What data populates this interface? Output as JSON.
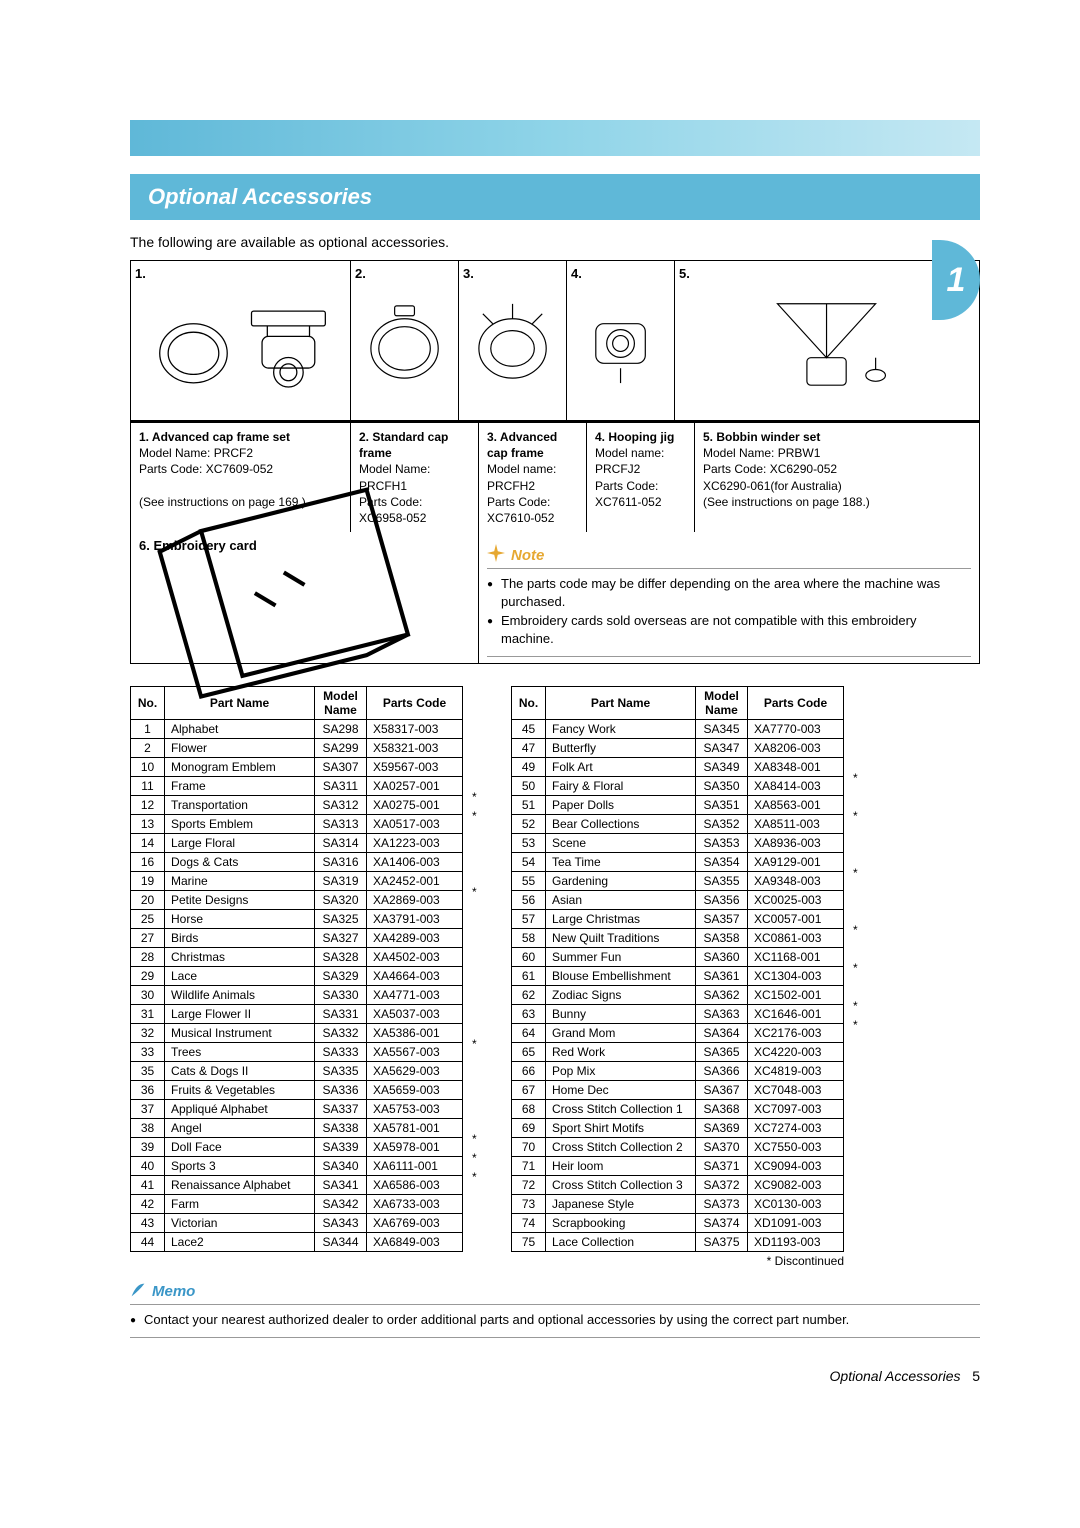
{
  "header": {
    "title": "Optional Accessories"
  },
  "chapter_tab": "1",
  "intro": "The following are available as optional accessories.",
  "accessories_nums": [
    "1.",
    "2.",
    "3.",
    "4.",
    "5."
  ],
  "accessory_details": [
    {
      "num": "1.",
      "title": "Advanced cap frame set",
      "lines": [
        "Model Name: PRCF2",
        "Parts Code: XC7609-052",
        "",
        "(See instructions on page 169.)"
      ]
    },
    {
      "num": "2.",
      "title": "Standard cap frame",
      "lines": [
        "Model Name: PRCFH1",
        "Parts Code: XC6958-052"
      ]
    },
    {
      "num": "3.",
      "title": "Advanced cap frame",
      "lines": [
        "Model name: PRCFH2",
        "Parts Code: XC7610-052"
      ]
    },
    {
      "num": "4.",
      "title": "Hooping jig",
      "lines": [
        "Model name: PRCFJ2",
        "Parts Code: XC7611-052"
      ]
    },
    {
      "num": "5.",
      "title": "Bobbin winder set",
      "lines": [
        "Model Name: PRBW1",
        "Parts Code: XC6290-052",
        "XC6290-061(for Australia)",
        "(See instructions on page 188.)"
      ]
    }
  ],
  "embroidery_card": {
    "num": "6.",
    "title": "Embroidery card"
  },
  "note": {
    "title": "Note",
    "items": [
      "The parts code may be differ depending on the area where the machine was purchased.",
      "Embroidery cards sold overseas are not compatible with this embroidery machine."
    ]
  },
  "table_headers": {
    "no": "No.",
    "part_name": "Part Name",
    "model_name": "Model Name",
    "parts_code": "Parts Code"
  },
  "parts_left": [
    {
      "no": "1",
      "name": "Alphabet",
      "model": "SA298",
      "code": "X58317-003"
    },
    {
      "no": "2",
      "name": "Flower",
      "model": "SA299",
      "code": "X58321-003"
    },
    {
      "no": "10",
      "name": "Monogram Emblem",
      "model": "SA307",
      "code": "X59567-003"
    },
    {
      "no": "11",
      "name": "Frame",
      "model": "SA311",
      "code": "XA0257-001",
      "star": true
    },
    {
      "no": "12",
      "name": "Transportation",
      "model": "SA312",
      "code": "XA0275-001",
      "star": true
    },
    {
      "no": "13",
      "name": "Sports Emblem",
      "model": "SA313",
      "code": "XA0517-003"
    },
    {
      "no": "14",
      "name": "Large Floral",
      "model": "SA314",
      "code": "XA1223-003"
    },
    {
      "no": "16",
      "name": "Dogs & Cats",
      "model": "SA316",
      "code": "XA1406-003"
    },
    {
      "no": "19",
      "name": "Marine",
      "model": "SA319",
      "code": "XA2452-001",
      "star": true
    },
    {
      "no": "20",
      "name": "Petite Designs",
      "model": "SA320",
      "code": "XA2869-003"
    },
    {
      "no": "25",
      "name": "Horse",
      "model": "SA325",
      "code": "XA3791-003"
    },
    {
      "no": "27",
      "name": "Birds",
      "model": "SA327",
      "code": "XA4289-003"
    },
    {
      "no": "28",
      "name": "Christmas",
      "model": "SA328",
      "code": "XA4502-003"
    },
    {
      "no": "29",
      "name": "Lace",
      "model": "SA329",
      "code": "XA4664-003"
    },
    {
      "no": "30",
      "name": "Wildlife Animals",
      "model": "SA330",
      "code": "XA4771-003"
    },
    {
      "no": "31",
      "name": "Large Flower II",
      "model": "SA331",
      "code": "XA5037-003"
    },
    {
      "no": "32",
      "name": "Musical Instrument",
      "model": "SA332",
      "code": "XA5386-001",
      "star": true
    },
    {
      "no": "33",
      "name": "Trees",
      "model": "SA333",
      "code": "XA5567-003"
    },
    {
      "no": "35",
      "name": "Cats & Dogs II",
      "model": "SA335",
      "code": "XA5629-003"
    },
    {
      "no": "36",
      "name": "Fruits & Vegetables",
      "model": "SA336",
      "code": "XA5659-003"
    },
    {
      "no": "37",
      "name": "Appliqué Alphabet",
      "model": "SA337",
      "code": "XA5753-003"
    },
    {
      "no": "38",
      "name": "Angel",
      "model": "SA338",
      "code": "XA5781-001",
      "star": true
    },
    {
      "no": "39",
      "name": "Doll Face",
      "model": "SA339",
      "code": "XA5978-001",
      "star": true
    },
    {
      "no": "40",
      "name": "Sports 3",
      "model": "SA340",
      "code": "XA6111-001",
      "star": true
    },
    {
      "no": "41",
      "name": "Renaissance Alphabet",
      "model": "SA341",
      "code": "XA6586-003"
    },
    {
      "no": "42",
      "name": "Farm",
      "model": "SA342",
      "code": "XA6733-003"
    },
    {
      "no": "43",
      "name": "Victorian",
      "model": "SA343",
      "code": "XA6769-003"
    },
    {
      "no": "44",
      "name": "Lace2",
      "model": "SA344",
      "code": "XA6849-003"
    }
  ],
  "parts_right": [
    {
      "no": "45",
      "name": "Fancy Work",
      "model": "SA345",
      "code": "XA7770-003"
    },
    {
      "no": "47",
      "name": "Butterfly",
      "model": "SA347",
      "code": "XA8206-003"
    },
    {
      "no": "49",
      "name": "Folk Art",
      "model": "SA349",
      "code": "XA8348-001",
      "star": true
    },
    {
      "no": "50",
      "name": "Fairy & Floral",
      "model": "SA350",
      "code": "XA8414-003"
    },
    {
      "no": "51",
      "name": "Paper Dolls",
      "model": "SA351",
      "code": "XA8563-001",
      "star": true
    },
    {
      "no": "52",
      "name": "Bear Collections",
      "model": "SA352",
      "code": "XA8511-003"
    },
    {
      "no": "53",
      "name": "Scene",
      "model": "SA353",
      "code": "XA8936-003"
    },
    {
      "no": "54",
      "name": "Tea Time",
      "model": "SA354",
      "code": "XA9129-001",
      "star": true
    },
    {
      "no": "55",
      "name": "Gardening",
      "model": "SA355",
      "code": "XA9348-003"
    },
    {
      "no": "56",
      "name": "Asian",
      "model": "SA356",
      "code": "XC0025-003"
    },
    {
      "no": "57",
      "name": "Large Christmas",
      "model": "SA357",
      "code": "XC0057-001",
      "star": true
    },
    {
      "no": "58",
      "name": "New Quilt Traditions",
      "model": "SA358",
      "code": "XC0861-003"
    },
    {
      "no": "60",
      "name": "Summer Fun",
      "model": "SA360",
      "code": "XC1168-001",
      "star": true
    },
    {
      "no": "61",
      "name": "Blouse Embellishment",
      "model": "SA361",
      "code": "XC1304-003"
    },
    {
      "no": "62",
      "name": "Zodiac Signs",
      "model": "SA362",
      "code": "XC1502-001",
      "star": true
    },
    {
      "no": "63",
      "name": "Bunny",
      "model": "SA363",
      "code": "XC1646-001",
      "star": true
    },
    {
      "no": "64",
      "name": "Grand Mom",
      "model": "SA364",
      "code": "XC2176-003"
    },
    {
      "no": "65",
      "name": "Red Work",
      "model": "SA365",
      "code": "XC4220-003"
    },
    {
      "no": "66",
      "name": "Pop Mix",
      "model": "SA366",
      "code": "XC4819-003"
    },
    {
      "no": "67",
      "name": "Home Dec",
      "model": "SA367",
      "code": "XC7048-003"
    },
    {
      "no": "68",
      "name": "Cross Stitch Collection 1",
      "model": "SA368",
      "code": "XC7097-003"
    },
    {
      "no": "69",
      "name": "Sport Shirt Motifs",
      "model": "SA369",
      "code": "XC7274-003"
    },
    {
      "no": "70",
      "name": "Cross Stitch Collection 2",
      "model": "SA370",
      "code": "XC7550-003"
    },
    {
      "no": "71",
      "name": "Heir loom",
      "model": "SA371",
      "code": "XC9094-003"
    },
    {
      "no": "72",
      "name": "Cross Stitch Collection 3",
      "model": "SA372",
      "code": "XC9082-003"
    },
    {
      "no": "73",
      "name": "Japanese Style",
      "model": "SA373",
      "code": "XC0130-003"
    },
    {
      "no": "74",
      "name": "Scrapbooking",
      "model": "SA374",
      "code": "XD1091-003"
    },
    {
      "no": "75",
      "name": "Lace Collection",
      "model": "SA375",
      "code": "XD1193-003"
    }
  ],
  "discontinued_note": "* Discontinued",
  "memo": {
    "title": "Memo",
    "items": [
      "Contact your nearest authorized dealer to order additional parts and optional accessories by using the correct part number."
    ]
  },
  "footer": {
    "title": "Optional Accessories",
    "page": "5"
  },
  "colors": {
    "header_bg": "#5fb8d8",
    "note_accent": "#e6a832",
    "memo_accent": "#3a96c7"
  }
}
